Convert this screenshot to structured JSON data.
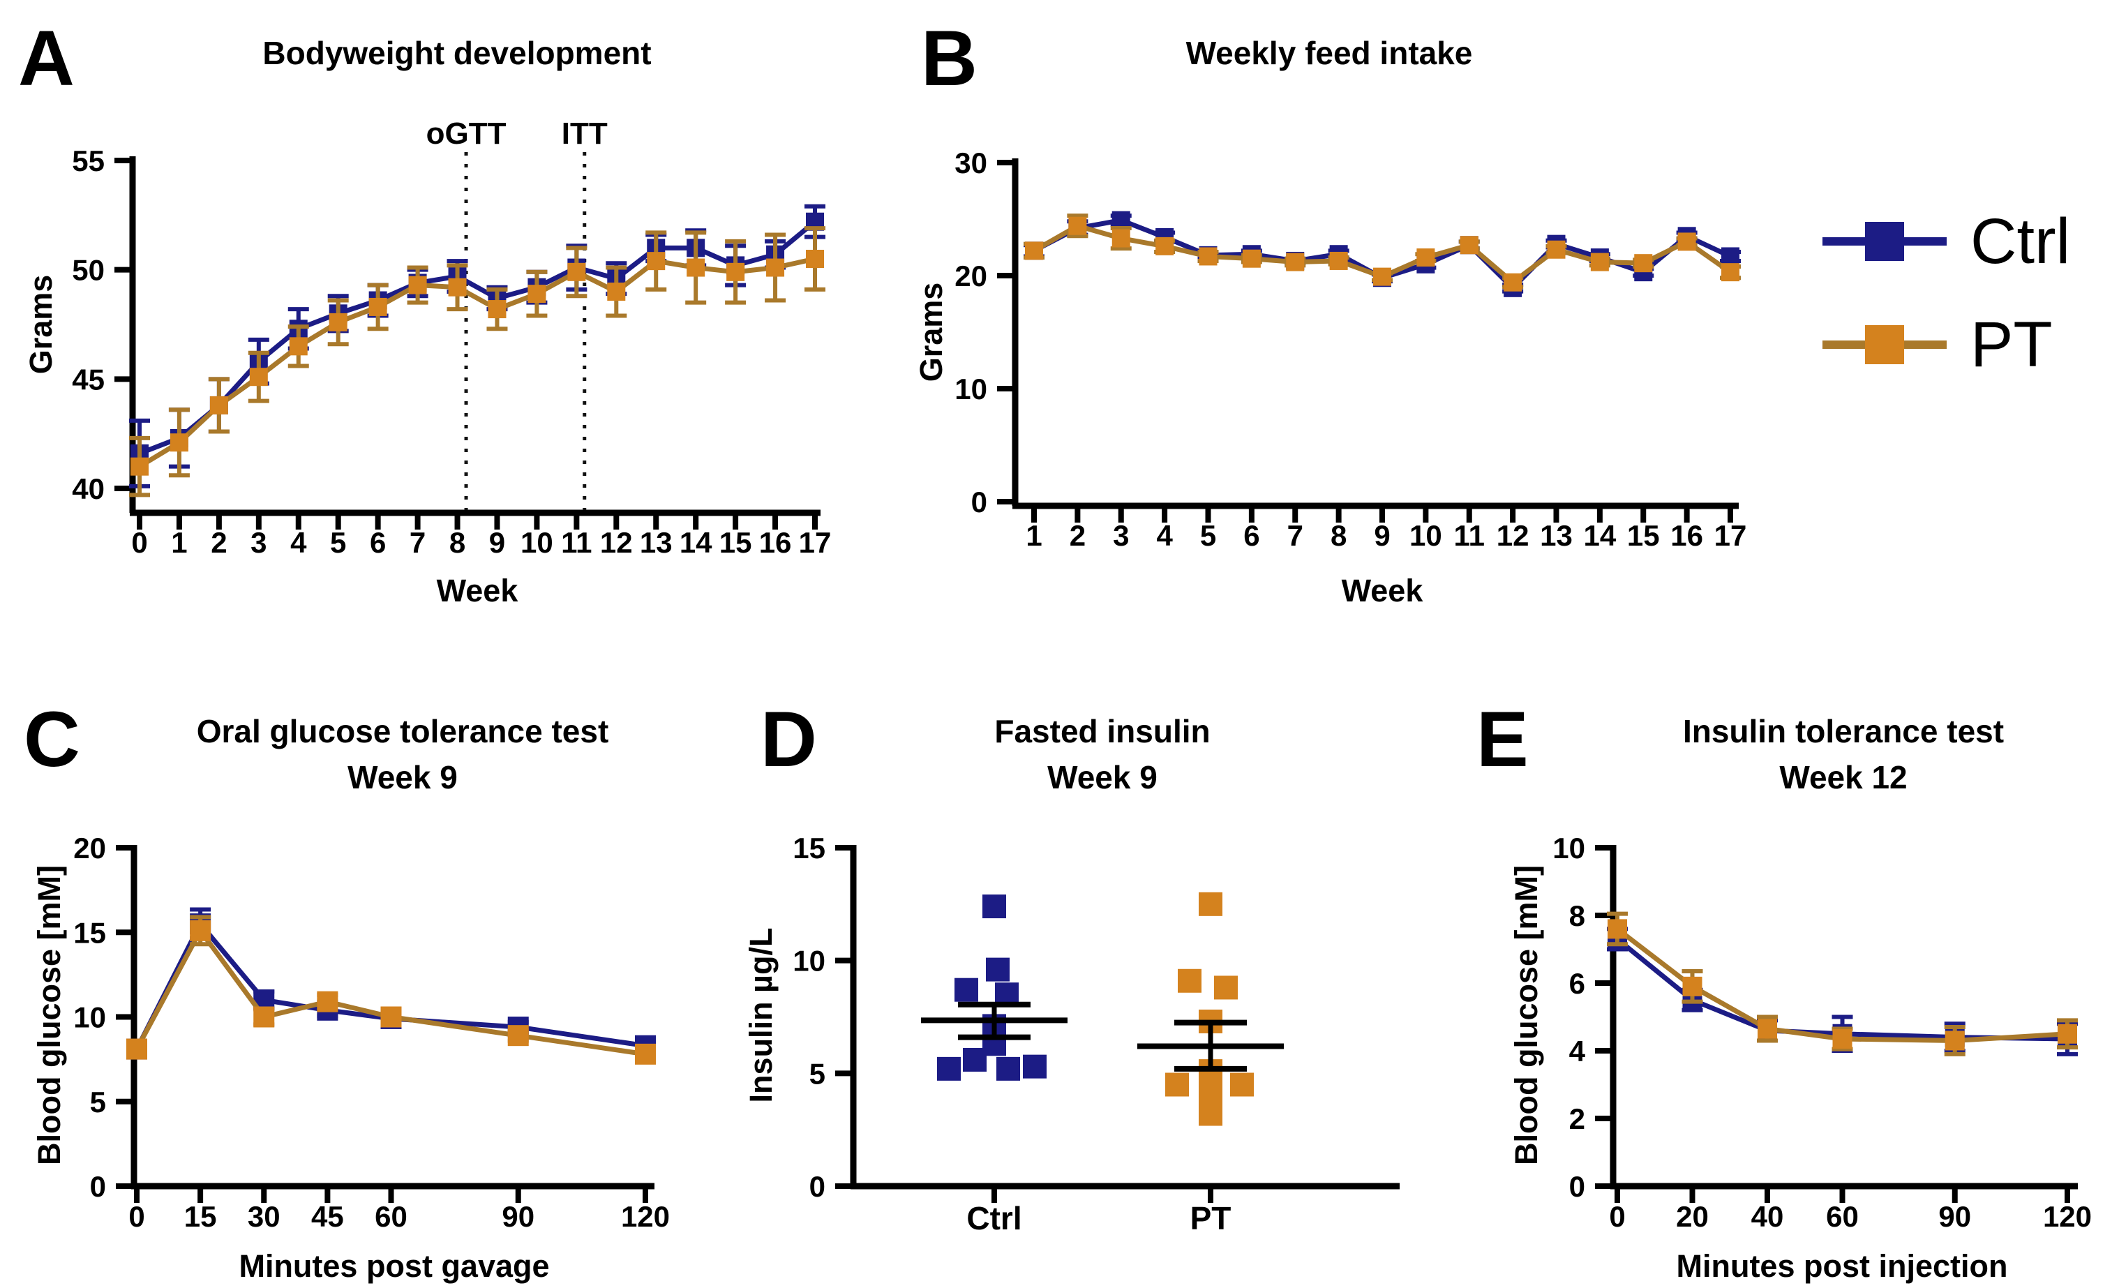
{
  "page": {
    "background": "#ffffff"
  },
  "legend": {
    "items": [
      {
        "label": "Ctrl",
        "color": "#1c1c85",
        "line_color": "#1c1c85"
      },
      {
        "label": "PT",
        "color": "#d4821e",
        "line_color": "#a9792b"
      }
    ]
  },
  "chart_data": [
    {
      "panel": "A",
      "label": "A",
      "type": "line",
      "title": "Bodyweight development",
      "xlabel": "Week",
      "ylabel": "Grams",
      "ylim": [
        38.9,
        55
      ],
      "yticks": [
        40,
        45,
        50,
        55
      ],
      "x": [
        0,
        1,
        2,
        3,
        4,
        5,
        6,
        7,
        8,
        9,
        10,
        11,
        12,
        13,
        14,
        15,
        16,
        17
      ],
      "xticks": [
        0,
        1,
        2,
        3,
        4,
        5,
        6,
        7,
        8,
        9,
        10,
        11,
        12,
        13,
        14,
        15,
        16,
        17
      ],
      "annotations": [
        {
          "label": "oGTT",
          "x": 8.22
        },
        {
          "label": "ITT",
          "x": 11.2
        }
      ],
      "series": [
        {
          "name": "Ctrl",
          "color": "#1c1c85",
          "line_color": "#1c1c85",
          "err_color": "#1c1c85",
          "values": [
            41.6,
            42.3,
            43.8,
            45.8,
            47.3,
            48.0,
            48.6,
            49.4,
            49.7,
            48.7,
            49.2,
            50.1,
            49.6,
            51.0,
            51.0,
            50.2,
            50.7,
            52.2
          ],
          "err": [
            1.5,
            1.3,
            1.2,
            1.0,
            0.9,
            0.8,
            0.7,
            0.6,
            0.7,
            0.5,
            0.7,
            1.0,
            0.7,
            0.6,
            0.8,
            0.9,
            0.6,
            0.7
          ]
        },
        {
          "name": "PT",
          "color": "#d4821e",
          "line_color": "#a9792b",
          "err_color": "#a9792b",
          "values": [
            41.0,
            42.1,
            43.8,
            45.1,
            46.5,
            47.6,
            48.3,
            49.3,
            49.2,
            48.2,
            48.9,
            49.9,
            49.0,
            50.4,
            50.1,
            49.9,
            50.1,
            50.5
          ],
          "err": [
            1.3,
            1.5,
            1.2,
            1.1,
            0.9,
            1.0,
            1.0,
            0.8,
            1.0,
            0.9,
            1.0,
            1.1,
            1.1,
            1.3,
            1.6,
            1.4,
            1.5,
            1.4
          ]
        }
      ]
    },
    {
      "panel": "B",
      "label": "B",
      "type": "line",
      "title": "Weekly feed intake",
      "xlabel": "Week",
      "ylabel": "Grams",
      "ylim": [
        0,
        30
      ],
      "yticks": [
        0,
        10,
        20,
        30
      ],
      "x": [
        1,
        2,
        3,
        4,
        5,
        6,
        7,
        8,
        9,
        10,
        11,
        12,
        13,
        14,
        15,
        16,
        17
      ],
      "xticks": [
        1,
        2,
        3,
        4,
        5,
        6,
        7,
        8,
        9,
        10,
        11,
        12,
        13,
        14,
        15,
        16,
        17
      ],
      "annotations": [],
      "series": [
        {
          "name": "Ctrl",
          "color": "#1c1c85",
          "line_color": "#1c1c85",
          "err_color": "#1c1c85",
          "values": [
            22.2,
            24.2,
            24.9,
            23.4,
            21.8,
            21.9,
            21.3,
            21.9,
            19.8,
            21.0,
            22.7,
            18.9,
            22.8,
            21.6,
            20.3,
            23.5,
            21.7
          ],
          "err": [
            0.5,
            0.6,
            0.4,
            0.4,
            0.3,
            0.3,
            0.2,
            0.3,
            0.3,
            0.3,
            0.3,
            0.3,
            0.3,
            0.3,
            0.3,
            0.3,
            0.4
          ]
        },
        {
          "name": "PT",
          "color": "#d4821e",
          "line_color": "#a9792b",
          "err_color": "#a9792b",
          "values": [
            22.2,
            24.4,
            23.3,
            22.6,
            21.7,
            21.5,
            21.2,
            21.3,
            19.9,
            21.6,
            22.7,
            19.4,
            22.3,
            21.2,
            21.1,
            23.0,
            20.3
          ],
          "err": [
            0.6,
            0.9,
            0.9,
            0.5,
            0.4,
            0.3,
            0.3,
            0.3,
            0.3,
            0.3,
            0.3,
            0.4,
            0.3,
            0.3,
            0.3,
            0.3,
            0.5
          ]
        }
      ]
    },
    {
      "panel": "C",
      "label": "C",
      "type": "line",
      "title": "Oral glucose tolerance test",
      "subtitle": "Week 9",
      "xlabel": "Minutes post gavage",
      "ylabel": "Blood glucose [mM]",
      "ylim": [
        0,
        20
      ],
      "yticks": [
        0,
        5,
        10,
        15,
        20
      ],
      "x": [
        0,
        15,
        30,
        45,
        60,
        90,
        120
      ],
      "xticks": [
        0,
        15,
        30,
        45,
        60,
        90,
        120
      ],
      "annotations": [],
      "series": [
        {
          "name": "Ctrl",
          "color": "#1c1c85",
          "line_color": "#1c1c85",
          "err_color": "#1c1c85",
          "values": [
            8.1,
            15.5,
            11.0,
            10.4,
            9.9,
            9.4,
            8.3
          ],
          "err": [
            0.25,
            0.85,
            0.5,
            0.35,
            0.3,
            0.3,
            0.3
          ]
        },
        {
          "name": "PT",
          "color": "#d4821e",
          "line_color": "#a9792b",
          "err_color": "#a9792b",
          "values": [
            8.1,
            15.1,
            10.0,
            10.9,
            10.0,
            8.9,
            7.8
          ],
          "err": [
            0.25,
            0.8,
            0.45,
            0.4,
            0.35,
            0.3,
            0.35
          ]
        }
      ]
    },
    {
      "panel": "D",
      "label": "D",
      "type": "scatter",
      "title": "Fasted insulin",
      "subtitle": "Week 9",
      "xlabel": "",
      "ylabel": "Insulin µg/L",
      "ylim": [
        0,
        15
      ],
      "yticks": [
        0,
        5,
        10,
        15
      ],
      "groups": [
        {
          "name": "Ctrl",
          "color": "#1c1c85",
          "points": [
            {
              "v": 12.4,
              "dx": 0
            },
            {
              "v": 9.6,
              "dx": 5
            },
            {
              "v": 8.7,
              "dx": -40
            },
            {
              "v": 8.5,
              "dx": 18
            },
            {
              "v": 7.1,
              "dx": 0
            },
            {
              "v": 6.7,
              "dx": 0
            },
            {
              "v": 6.3,
              "dx": 0
            },
            {
              "v": 5.6,
              "dx": -28
            },
            {
              "v": 5.2,
              "dx": -65
            },
            {
              "v": 5.2,
              "dx": 20
            },
            {
              "v": 5.3,
              "dx": 58
            }
          ],
          "mean": 7.35,
          "sem_low": 6.6,
          "sem_high": 8.05
        },
        {
          "name": "PT",
          "color": "#d4821e",
          "points": [
            {
              "v": 12.5,
              "dx": 0
            },
            {
              "v": 9.1,
              "dx": -30
            },
            {
              "v": 8.8,
              "dx": 22
            },
            {
              "v": 7.3,
              "dx": 0
            },
            {
              "v": 5.1,
              "dx": 0
            },
            {
              "v": 4.6,
              "dx": 0
            },
            {
              "v": 4.5,
              "dx": -48
            },
            {
              "v": 4.5,
              "dx": 45
            },
            {
              "v": 4.1,
              "dx": 0
            },
            {
              "v": 3.6,
              "dx": 0
            },
            {
              "v": 3.2,
              "dx": 0
            }
          ],
          "mean": 6.2,
          "sem_low": 5.2,
          "sem_high": 7.25
        }
      ]
    },
    {
      "panel": "E",
      "label": "E",
      "type": "line",
      "title": "Insulin tolerance test",
      "subtitle": "Week 12",
      "xlabel": "Minutes post injection",
      "ylabel": "Blood glucose [mM]",
      "ylim": [
        0,
        10
      ],
      "yticks": [
        0,
        2,
        4,
        6,
        8,
        10
      ],
      "x": [
        0,
        20,
        40,
        60,
        90,
        120
      ],
      "xticks": [
        0,
        20,
        40,
        60,
        90,
        120
      ],
      "annotations": [],
      "series": [
        {
          "name": "Ctrl",
          "color": "#1c1c85",
          "line_color": "#1c1c85",
          "err_color": "#1c1c85",
          "values": [
            7.3,
            5.5,
            4.6,
            4.5,
            4.4,
            4.35
          ],
          "err": [
            0.3,
            0.3,
            0.3,
            0.5,
            0.4,
            0.45
          ]
        },
        {
          "name": "PT",
          "color": "#d4821e",
          "line_color": "#a9792b",
          "err_color": "#a9792b",
          "values": [
            7.6,
            5.9,
            4.65,
            4.35,
            4.3,
            4.5
          ],
          "err": [
            0.45,
            0.45,
            0.35,
            0.3,
            0.4,
            0.4
          ]
        }
      ]
    }
  ]
}
